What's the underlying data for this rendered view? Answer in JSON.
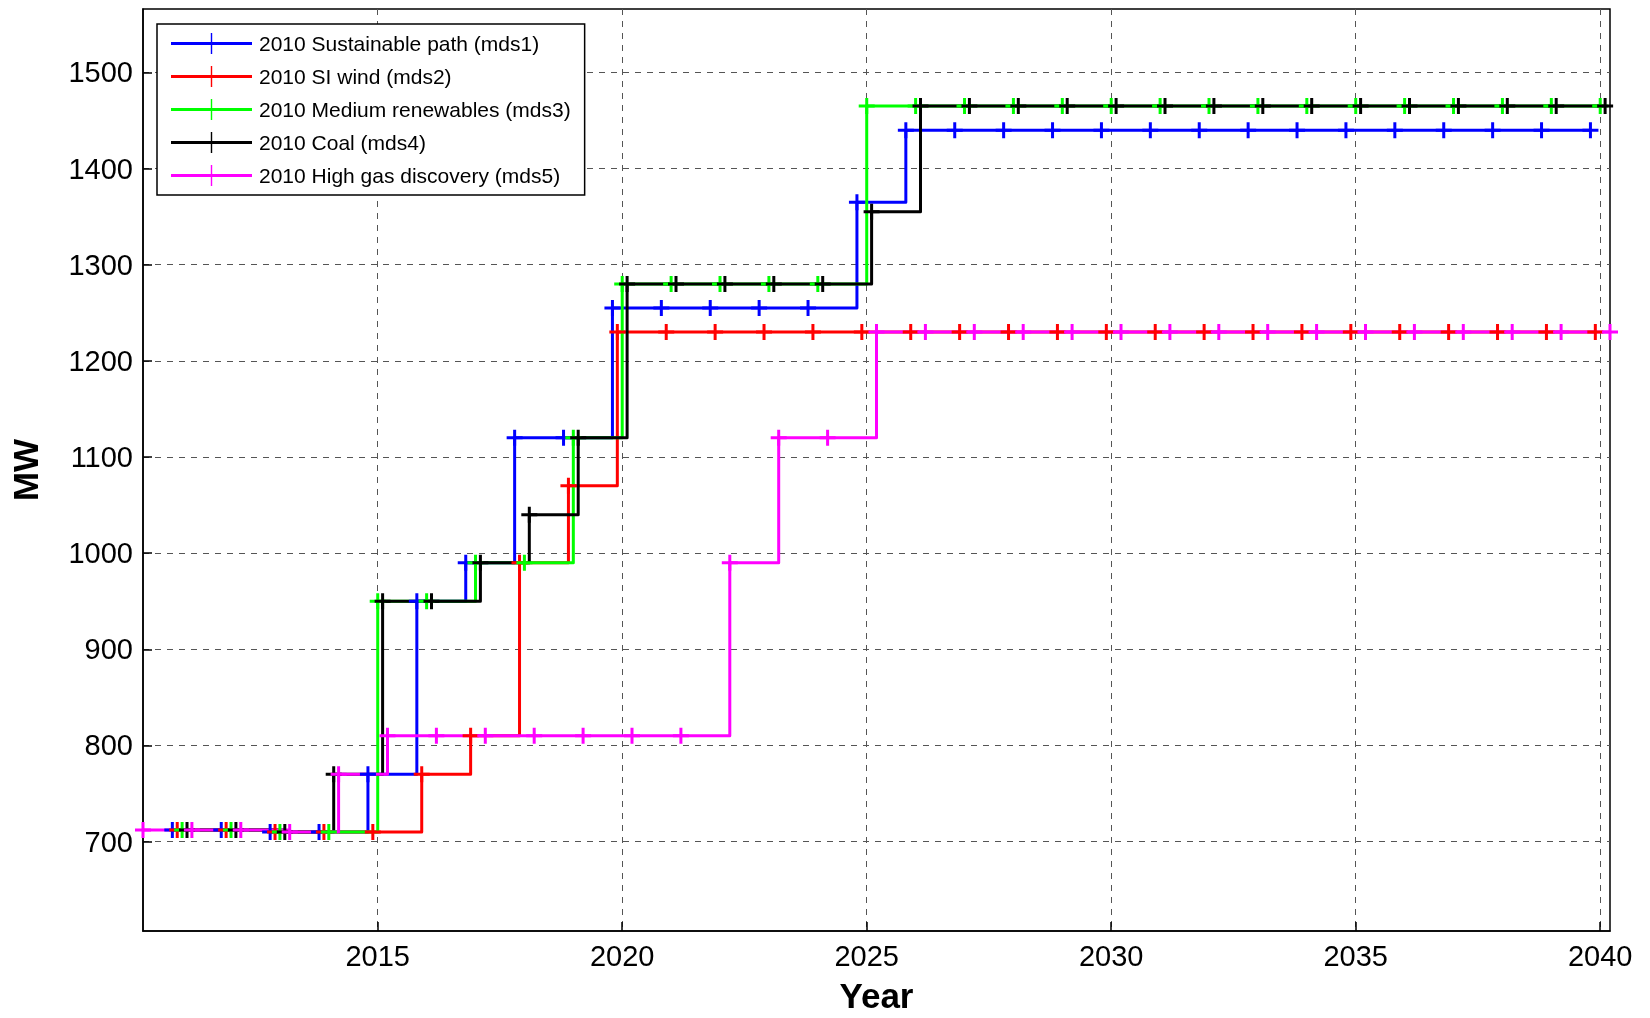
{
  "chart_data": {
    "type": "step",
    "xlabel": "Year",
    "ylabel": "MW",
    "xlim": [
      2010.2,
      2040.2
    ],
    "xticks": [
      2015,
      2020,
      2025,
      2030,
      2035,
      2040
    ],
    "ylim": [
      607,
      1566
    ],
    "yticks": [
      700,
      800,
      900,
      1000,
      1100,
      1200,
      1300,
      1400,
      1500
    ],
    "grid": true,
    "legend": "top left",
    "marker": "cross",
    "line_style": "solid",
    "series": [
      {
        "name": "2010 Sustainable path (mds1)",
        "color": "#0000ff",
        "x": [
          2010.8,
          2011.8,
          2012.8,
          2013.8,
          2014.8,
          2015.8,
          2016.8,
          2017.8,
          2018.8,
          2019.8,
          2020.8,
          2021.8,
          2022.8,
          2023.8,
          2024.8,
          2025.8,
          2026.8,
          2027.8,
          2028.8,
          2029.8,
          2030.8,
          2031.8,
          2032.8,
          2033.8,
          2034.8,
          2035.8,
          2036.8,
          2037.8,
          2038.8,
          2039.8
        ],
        "values": [
          712,
          712,
          710,
          710,
          770,
          950,
          990,
          1120,
          1120,
          1255,
          1255,
          1255,
          1255,
          1255,
          1365,
          1440,
          1440,
          1440,
          1440,
          1440,
          1440,
          1440,
          1440,
          1440,
          1440,
          1440,
          1440,
          1440,
          1440,
          1440
        ]
      },
      {
        "name": "2010 SI wind (mds2)",
        "color": "#ff0000",
        "x": [
          2010.9,
          2011.9,
          2012.9,
          2013.9,
          2014.9,
          2015.9,
          2016.9,
          2017.9,
          2018.9,
          2019.9,
          2020.9,
          2021.9,
          2022.9,
          2023.9,
          2024.9,
          2025.9,
          2026.9,
          2027.9,
          2028.9,
          2029.9,
          2030.9,
          2031.9,
          2032.9,
          2033.9,
          2034.9,
          2035.9,
          2036.9,
          2037.9,
          2038.9,
          2039.9
        ],
        "values": [
          712,
          712,
          710,
          710,
          710,
          770,
          810,
          990,
          1070,
          1230,
          1230,
          1230,
          1230,
          1230,
          1230,
          1230,
          1230,
          1230,
          1230,
          1230,
          1230,
          1230,
          1230,
          1230,
          1230,
          1230,
          1230,
          1230,
          1230,
          1230
        ]
      },
      {
        "name": "2010 Medium renewables (mds3)",
        "color": "#00ff00",
        "x": [
          2011,
          2012,
          2013,
          2014,
          2015,
          2016,
          2017,
          2018,
          2019,
          2020,
          2021,
          2022,
          2023,
          2024,
          2025,
          2026,
          2027,
          2028,
          2029,
          2030,
          2031,
          2032,
          2033,
          2034,
          2035,
          2036,
          2037,
          2038,
          2039,
          2040
        ],
        "values": [
          712,
          712,
          710,
          710,
          950,
          950,
          990,
          990,
          1120,
          1280,
          1280,
          1280,
          1280,
          1280,
          1465,
          1465,
          1465,
          1465,
          1465,
          1465,
          1465,
          1465,
          1465,
          1465,
          1465,
          1465,
          1465,
          1465,
          1465,
          1465
        ]
      },
      {
        "name": "2010 Coal (mds4)",
        "color": "#000000",
        "x": [
          2011.1,
          2012.1,
          2013.1,
          2014.1,
          2015.1,
          2016.1,
          2017.1,
          2018.1,
          2019.1,
          2020.1,
          2021.1,
          2022.1,
          2023.1,
          2024.1,
          2025.1,
          2026.1,
          2027.1,
          2028.1,
          2029.1,
          2030.1,
          2031.1,
          2032.1,
          2033.1,
          2034.1,
          2035.1,
          2036.1,
          2037.1,
          2038.1,
          2039.1,
          2040.1
        ],
        "values": [
          712,
          712,
          710,
          770,
          950,
          950,
          990,
          1040,
          1120,
          1280,
          1280,
          1280,
          1280,
          1280,
          1355,
          1465,
          1465,
          1465,
          1465,
          1465,
          1465,
          1465,
          1465,
          1465,
          1465,
          1465,
          1465,
          1465,
          1465,
          1465
        ]
      },
      {
        "name": "2010 High gas discovery (mds5)",
        "color": "#ff00ff",
        "x": [
          2010.2,
          2011.2,
          2012.2,
          2013.2,
          2014.2,
          2015.2,
          2016.2,
          2017.2,
          2018.2,
          2019.2,
          2020.2,
          2021.2,
          2022.2,
          2023.2,
          2024.2,
          2025.2,
          2026.2,
          2027.2,
          2028.2,
          2029.2,
          2030.2,
          2031.2,
          2032.2,
          2033.2,
          2034.2,
          2035.2,
          2036.2,
          2037.2,
          2038.2,
          2039.2,
          2040.2
        ],
        "values": [
          712,
          712,
          712,
          710,
          770,
          810,
          810,
          810,
          810,
          810,
          810,
          810,
          990,
          1120,
          1120,
          1230,
          1230,
          1230,
          1230,
          1230,
          1230,
          1230,
          1230,
          1230,
          1230,
          1230,
          1230,
          1230,
          1230,
          1230,
          1230
        ]
      }
    ]
  }
}
